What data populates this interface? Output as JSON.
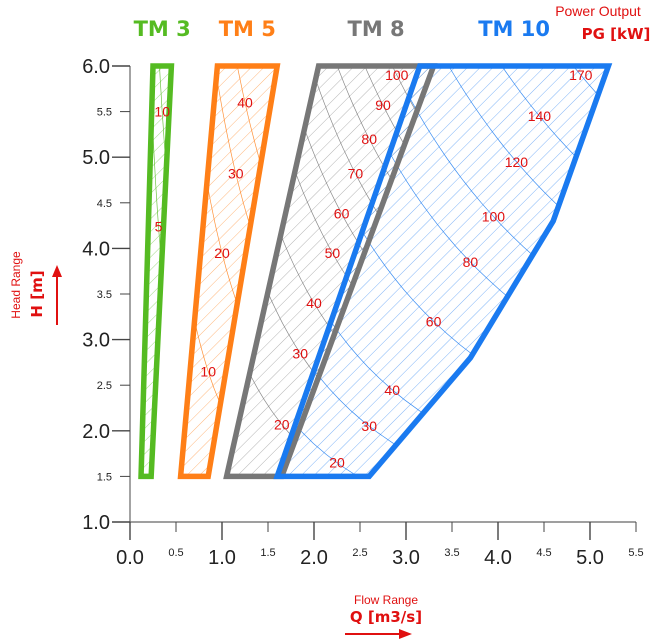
{
  "chart_data": {
    "type": "area",
    "title": "",
    "xlabel": "Flow Range",
    "xsymbol": "Q [m3/s]",
    "ylabel": "Head Range",
    "ysymbol": "H [m]",
    "power_label": "Power Output",
    "power_symbol": "PG [kW]",
    "xlim": [
      0,
      5.5
    ],
    "ylim": [
      1,
      6
    ],
    "x_ticks_major": [
      "0.0",
      "1.0",
      "2.0",
      "3.0",
      "4.0",
      "5.0"
    ],
    "x_ticks_minor": [
      "0.5",
      "1.5",
      "2.5",
      "3.5",
      "4.5",
      "5.5"
    ],
    "y_ticks_major": [
      "1.0",
      "2.0",
      "3.0",
      "4.0",
      "5.0",
      "6.0"
    ],
    "y_ticks_minor": [
      "1.5",
      "2.5",
      "3.5",
      "4.5",
      "5.5"
    ],
    "grid": false,
    "series": [
      {
        "name": "TM 3",
        "color": "#55bb22",
        "outline": [
          [
            0.12,
            1.5
          ],
          [
            0.23,
            1.5
          ],
          [
            0.45,
            6.0
          ],
          [
            0.25,
            6.0
          ]
        ],
        "power_labels": [
          {
            "text": "5",
            "q": 0.31,
            "h": 4.24
          },
          {
            "text": "10",
            "q": 0.35,
            "h": 5.5
          }
        ]
      },
      {
        "name": "TM 5",
        "color": "#ff7f17",
        "outline": [
          [
            0.55,
            1.5
          ],
          [
            0.85,
            1.5
          ],
          [
            1.6,
            6.0
          ],
          [
            0.95,
            6.0
          ]
        ],
        "power_labels": [
          {
            "text": "10",
            "q": 0.85,
            "h": 2.65
          },
          {
            "text": "20",
            "q": 1.0,
            "h": 3.95
          },
          {
            "text": "30",
            "q": 1.15,
            "h": 4.82
          },
          {
            "text": "40",
            "q": 1.25,
            "h": 5.6
          }
        ]
      },
      {
        "name": "TM 8",
        "color": "#777777",
        "outline": [
          [
            1.05,
            1.5
          ],
          [
            1.65,
            1.5
          ],
          [
            3.3,
            6.0
          ],
          [
            2.05,
            6.0
          ]
        ],
        "power_labels": [
          {
            "text": "20",
            "q": 1.65,
            "h": 2.07
          },
          {
            "text": "30",
            "q": 1.85,
            "h": 2.85
          },
          {
            "text": "40",
            "q": 2.0,
            "h": 3.4
          },
          {
            "text": "50",
            "q": 2.2,
            "h": 3.95
          },
          {
            "text": "60",
            "q": 2.3,
            "h": 4.38
          },
          {
            "text": "70",
            "q": 2.45,
            "h": 4.82
          },
          {
            "text": "80",
            "q": 2.6,
            "h": 5.2
          },
          {
            "text": "90",
            "q": 2.75,
            "h": 5.57
          },
          {
            "text": "100",
            "q": 2.9,
            "h": 5.9
          }
        ]
      },
      {
        "name": "TM 10",
        "color": "#1a7af0",
        "outline": [
          [
            1.6,
            1.5
          ],
          [
            2.6,
            1.5
          ],
          [
            3.7,
            2.8
          ],
          [
            4.6,
            4.3
          ],
          [
            5.2,
            6.0
          ],
          [
            3.15,
            6.0
          ]
        ],
        "power_labels": [
          {
            "text": "20",
            "q": 2.25,
            "h": 1.65
          },
          {
            "text": "30",
            "q": 2.6,
            "h": 2.05
          },
          {
            "text": "40",
            "q": 2.85,
            "h": 2.45
          },
          {
            "text": "60",
            "q": 3.3,
            "h": 3.2
          },
          {
            "text": "80",
            "q": 3.7,
            "h": 3.85
          },
          {
            "text": "100",
            "q": 3.95,
            "h": 4.35
          },
          {
            "text": "120",
            "q": 4.2,
            "h": 4.95
          },
          {
            "text": "140",
            "q": 4.45,
            "h": 5.45
          },
          {
            "text": "170",
            "q": 4.9,
            "h": 5.9
          }
        ]
      }
    ]
  }
}
